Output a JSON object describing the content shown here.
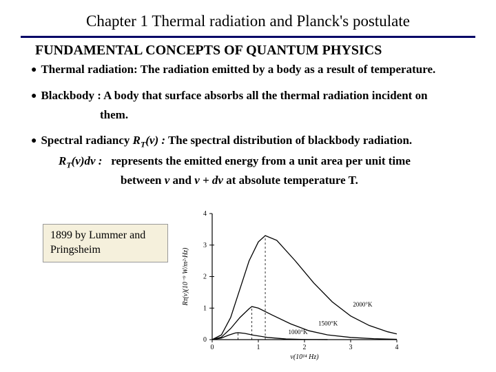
{
  "chapter_title": "Chapter 1   Thermal radiation and Planck's postulate",
  "subtitle": "FUNDAMENTAL CONCEPTS OF QUANTUM PHYSICS",
  "bullets": {
    "thermal_label": "Thermal radiation:",
    "thermal_text": "  The radiation emitted by a body as a result of temperature.",
    "blackbody_label": "Blackbody :",
    "blackbody_text": " A body that surface absorbs all the thermal radiation incident on",
    "blackbody_cont": "them.",
    "spectral_label": "Spectral radiancy ",
    "spectral_text": "  The spectral distribution of  blackbody radiation.",
    "spectral_line2": "represents the emitted energy from a unit area per unit time",
    "spectral_line3_a": "between ",
    "spectral_line3_b": " and ",
    "spectral_line3_c": "  at absolute temperature T."
  },
  "formulas": {
    "rtv": "R",
    "rtv_sub": "T",
    "rtv_arg": "(ν) :",
    "rtvdv": "R",
    "rtvdv_sub": "T",
    "rtvdv_arg": "(ν)dν :",
    "nu": "ν",
    "nudnu": "ν + dν"
  },
  "callout": "1899 by Lummer and Pringsheim",
  "chart": {
    "background": "#ffffff",
    "axis_color": "#000000",
    "grid_color": "#000000",
    "xlabel": "ν(10¹⁴ Hz)",
    "ylabel": "Rᴛ(ν)(10⁻⁹ W/m²·Hz)",
    "xlim": [
      0,
      4
    ],
    "ylim": [
      0,
      4
    ],
    "xticks": [
      0,
      1,
      2,
      3,
      4
    ],
    "yticks": [
      0,
      1,
      2,
      3,
      4
    ],
    "curves": [
      {
        "label": "2000°K",
        "color": "#000000",
        "peak_x": 1.15,
        "peak_y": 3.3,
        "points": [
          [
            0,
            0
          ],
          [
            0.2,
            0.15
          ],
          [
            0.4,
            0.7
          ],
          [
            0.6,
            1.6
          ],
          [
            0.8,
            2.5
          ],
          [
            1.0,
            3.1
          ],
          [
            1.15,
            3.3
          ],
          [
            1.4,
            3.15
          ],
          [
            1.8,
            2.5
          ],
          [
            2.2,
            1.8
          ],
          [
            2.6,
            1.2
          ],
          [
            3.0,
            0.75
          ],
          [
            3.4,
            0.45
          ],
          [
            3.8,
            0.25
          ],
          [
            4.0,
            0.18
          ]
        ]
      },
      {
        "label": "1500°K",
        "color": "#000000",
        "peak_x": 0.86,
        "peak_y": 1.05,
        "points": [
          [
            0,
            0
          ],
          [
            0.2,
            0.08
          ],
          [
            0.4,
            0.35
          ],
          [
            0.6,
            0.7
          ],
          [
            0.8,
            0.98
          ],
          [
            0.86,
            1.05
          ],
          [
            1.0,
            1.0
          ],
          [
            1.3,
            0.78
          ],
          [
            1.7,
            0.5
          ],
          [
            2.1,
            0.28
          ],
          [
            2.5,
            0.15
          ],
          [
            3.0,
            0.07
          ],
          [
            3.5,
            0.03
          ],
          [
            4.0,
            0.01
          ]
        ]
      },
      {
        "label": "1000°K",
        "color": "#000000",
        "peak_x": 0.56,
        "peak_y": 0.22,
        "points": [
          [
            0,
            0
          ],
          [
            0.2,
            0.05
          ],
          [
            0.35,
            0.14
          ],
          [
            0.5,
            0.21
          ],
          [
            0.56,
            0.22
          ],
          [
            0.7,
            0.2
          ],
          [
            0.9,
            0.14
          ],
          [
            1.2,
            0.07
          ],
          [
            1.6,
            0.02
          ],
          [
            2.0,
            0.005
          ],
          [
            2.5,
            0.001
          ]
        ]
      }
    ],
    "label_fontsize": 9,
    "tick_fontsize": 10
  }
}
